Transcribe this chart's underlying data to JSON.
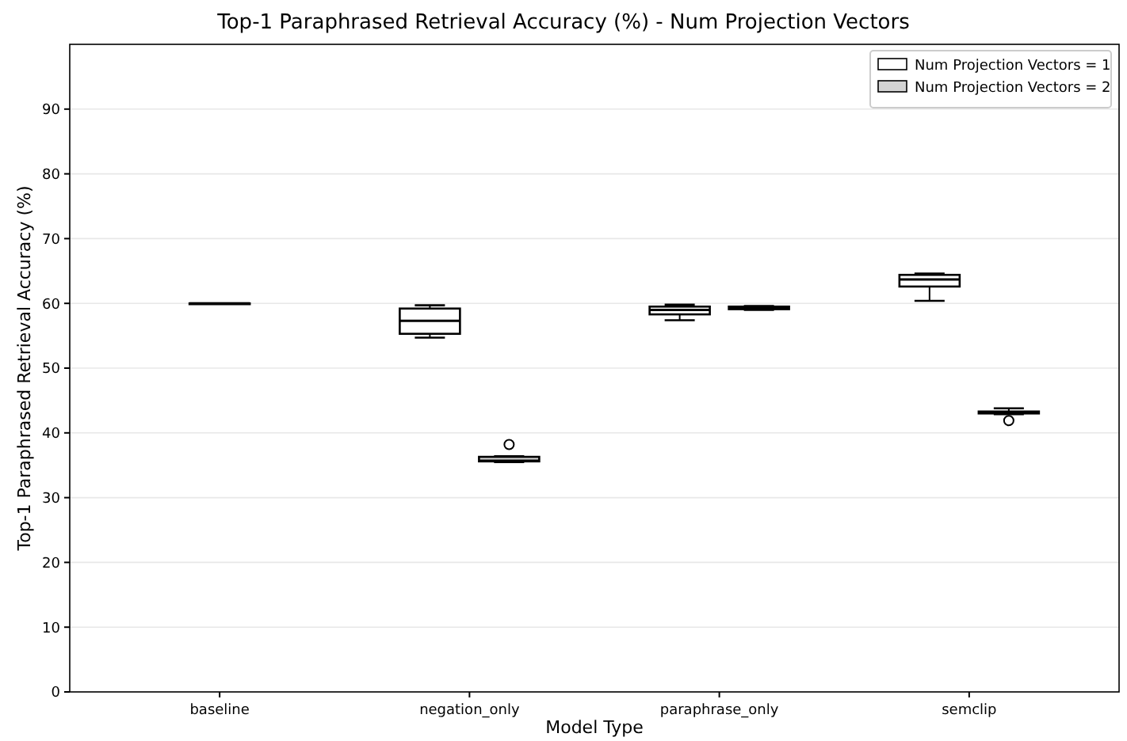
{
  "chart_data": {
    "type": "box",
    "title": "Top-1 Paraphrased Retrieval Accuracy (%) - Num Projection Vectors",
    "xlabel": "Model Type",
    "ylabel": "Top-1 Paraphrased Retrieval Accuracy (%)",
    "categories": [
      "baseline",
      "negation_only",
      "paraphrase_only",
      "semclip"
    ],
    "ylim": [
      0,
      100
    ],
    "yticks": [
      0,
      10,
      20,
      30,
      40,
      50,
      60,
      70,
      80,
      90
    ],
    "grid": "y",
    "legend": "top right",
    "series": [
      {
        "name": "Num Projection Vectors = 1",
        "color": "#ffffff",
        "boxes": [
          {
            "low": 60,
            "q1": 60,
            "median": 60,
            "q3": 60,
            "high": 60
          },
          {
            "low": 54.7,
            "q1": 55.3,
            "median": 57.3,
            "q3": 59.2,
            "high": 59.7
          },
          {
            "low": 57.4,
            "q1": 58.3,
            "median": 59,
            "q3": 59.5,
            "high": 59.8
          },
          {
            "low": 60.4,
            "q1": 62.6,
            "median": 63.7,
            "q3": 64.4,
            "high": 64.6
          }
        ]
      },
      {
        "name": "Num Projection Vectors = 2",
        "color": "#d3d3d3",
        "boxes": [
          null,
          {
            "low": 35.5,
            "q1": 35.6,
            "median": 35.7,
            "q3": 36.3,
            "high": 36.4,
            "outliers": [
              38.2
            ]
          },
          {
            "low": 59,
            "q1": 59.1,
            "median": 59.3,
            "q3": 59.5,
            "high": 59.6
          },
          {
            "low": 42.9,
            "q1": 43,
            "median": 43.2,
            "q3": 43.3,
            "high": 43.8,
            "outliers": [
              41.9
            ]
          }
        ]
      }
    ]
  }
}
